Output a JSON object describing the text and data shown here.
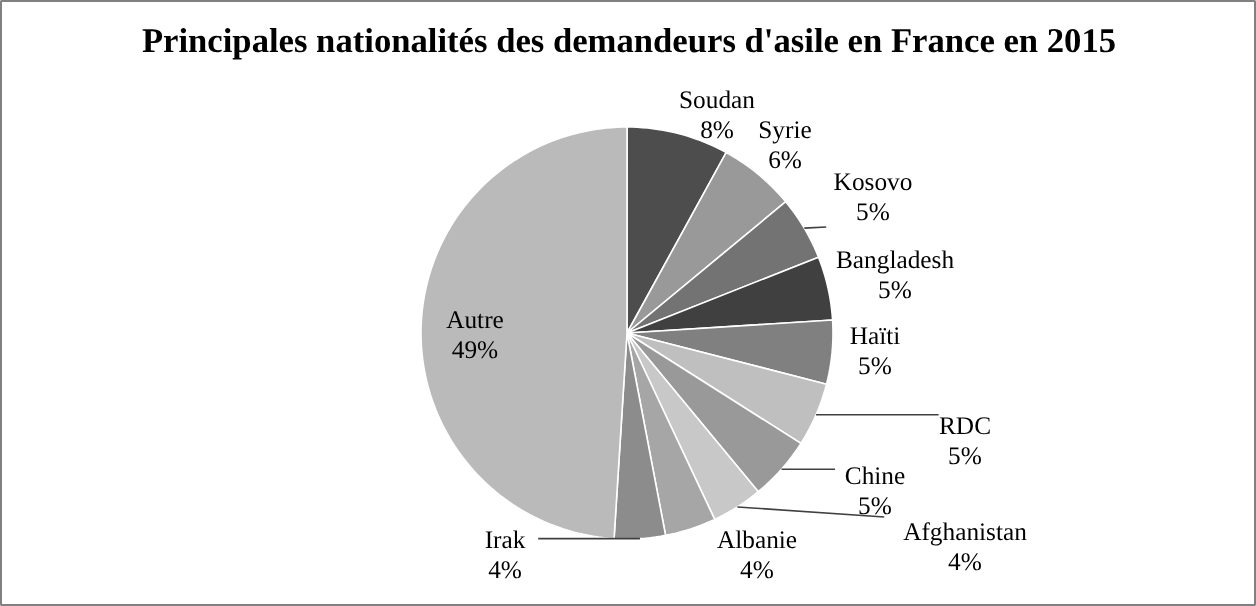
{
  "chart_data": {
    "type": "pie",
    "title": "Principales nationalités des demandeurs d'asile en France en 2015",
    "categories": [
      "Soudan",
      "Syrie",
      "Kosovo",
      "Bangladesh",
      "Haïti",
      "RDC",
      "Chine",
      "Afghanistan",
      "Albanie",
      "Irak",
      "Autre"
    ],
    "values": [
      8,
      6,
      5,
      5,
      5,
      5,
      5,
      4,
      4,
      4,
      49
    ],
    "value_labels": [
      "8%",
      "6%",
      "5%",
      "5%",
      "5%",
      "5%",
      "5%",
      "4%",
      "4%",
      "4%",
      "49%"
    ],
    "colors": [
      "#4d4d4d",
      "#999999",
      "#737373",
      "#404040",
      "#808080",
      "#bfbfbf",
      "#999999",
      "#c8c8c8",
      "#a6a6a6",
      "#8c8c8c",
      "#bababa"
    ]
  }
}
